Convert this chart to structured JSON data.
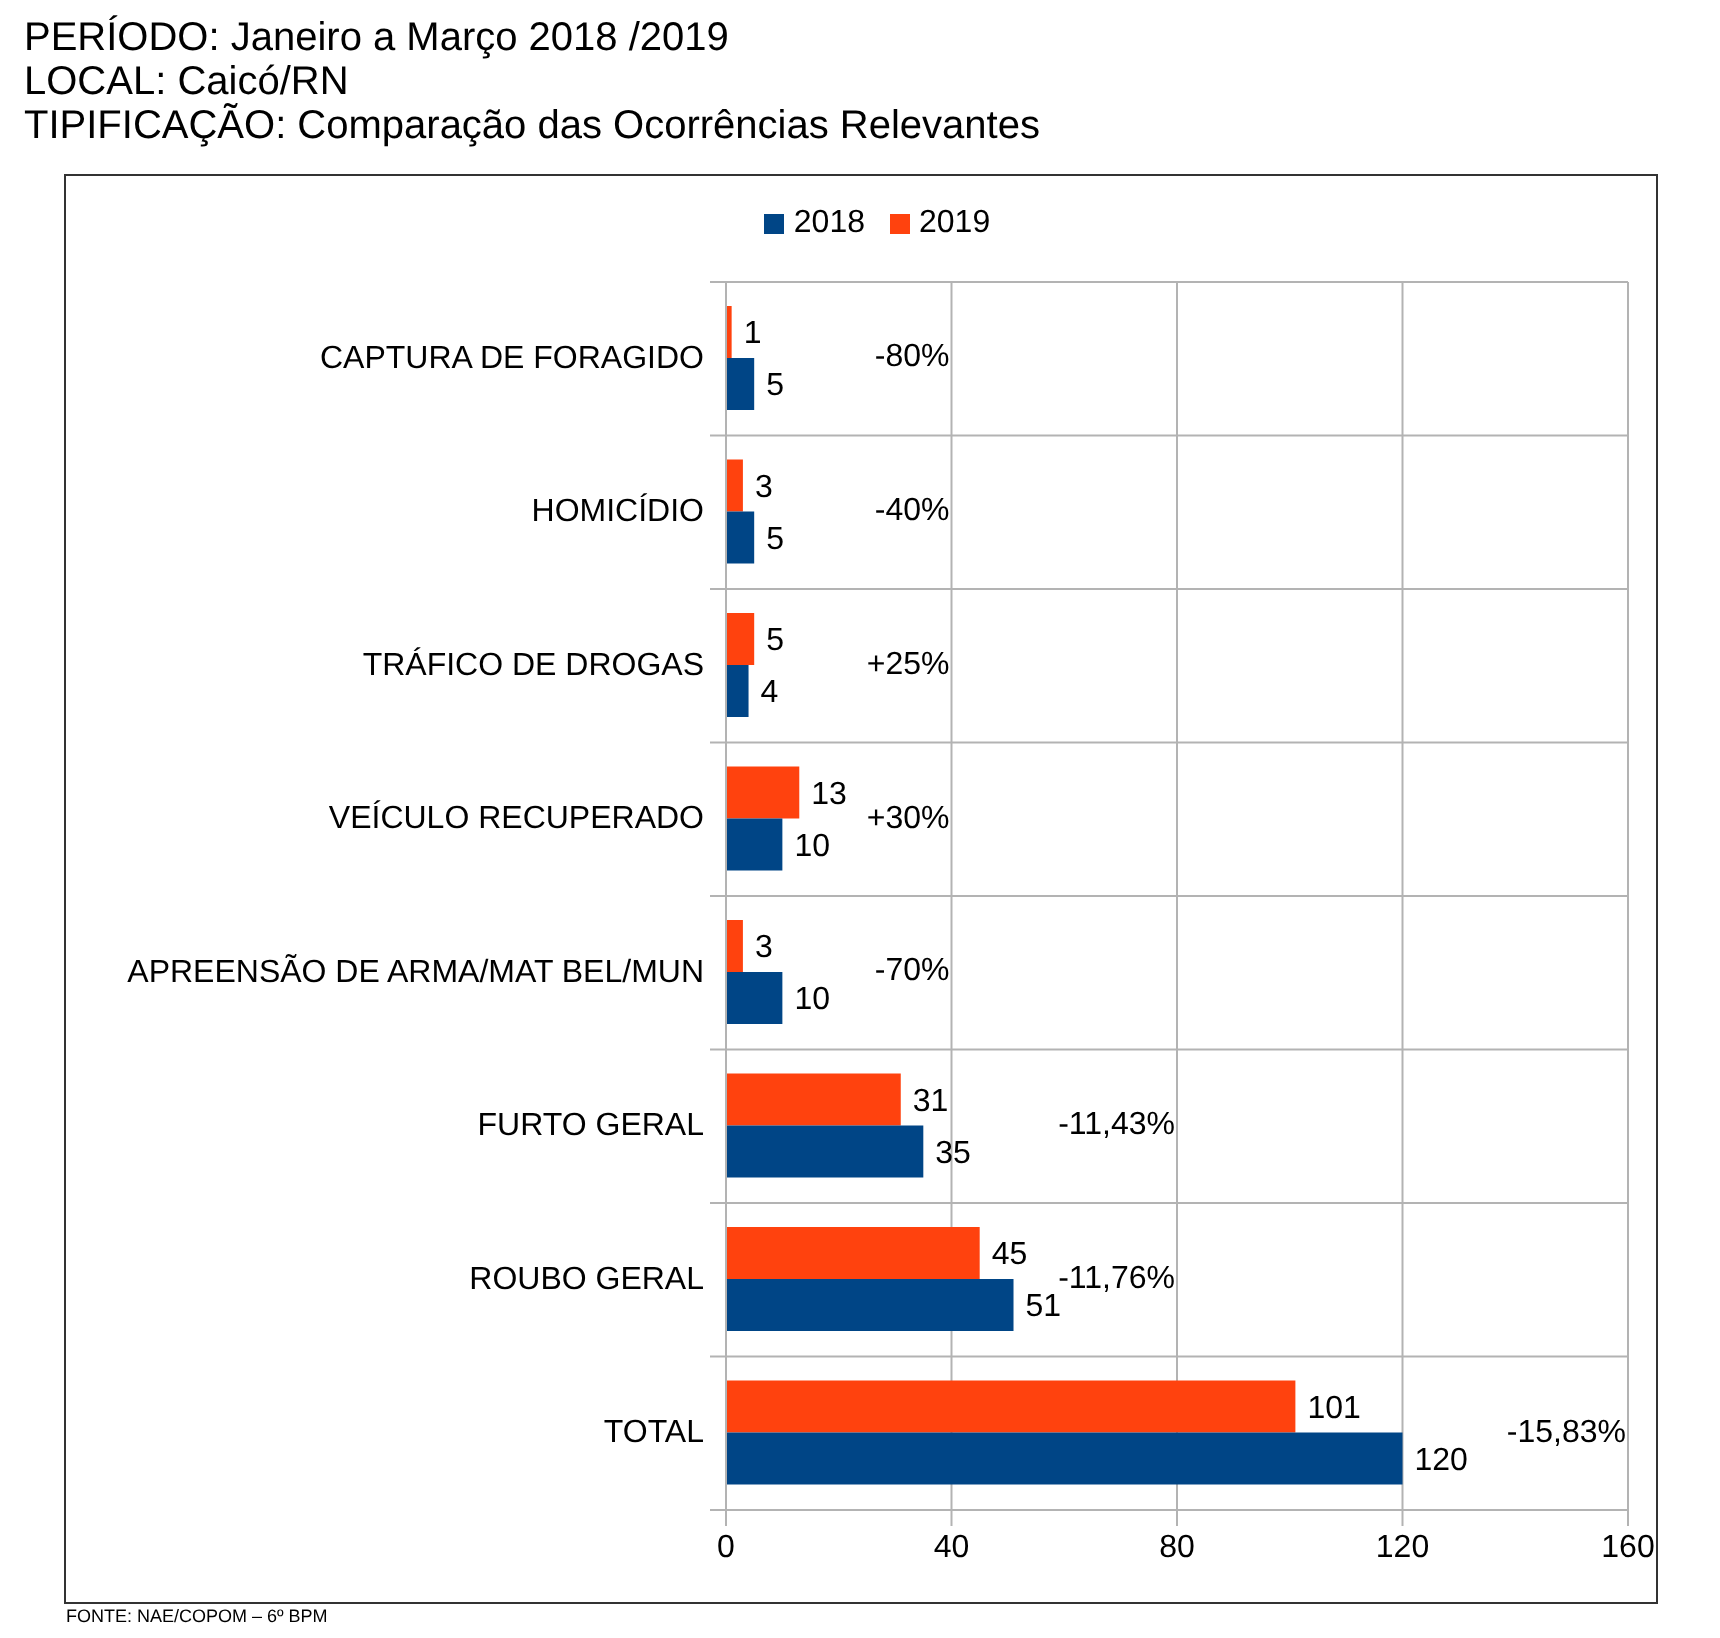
{
  "chart_data": {
    "type": "bar",
    "orientation": "horizontal",
    "title": "PERÍODO: Janeiro a Março 2018 /2019",
    "subtitle": "LOCAL: Caicó/RN\nTIPIFICAÇÃO: Comparação das Ocorrências Relevantes",
    "categories": [
      "CAPTURA DE FORAGIDO",
      "HOMICÍDIO",
      "TRÁFICO DE DROGAS",
      "VEÍCULO RECUPERADO",
      "APREENSÃO DE ARMA/MAT BEL/MUN",
      "FURTO GERAL",
      "ROUBO GERAL",
      "TOTAL"
    ],
    "series": [
      {
        "name": "2018",
        "color": "#004586",
        "values": [
          5,
          5,
          4,
          10,
          10,
          35,
          51,
          120
        ]
      },
      {
        "name": "2019",
        "color": "#ff420e",
        "values": [
          1,
          3,
          5,
          13,
          3,
          31,
          45,
          101
        ]
      }
    ],
    "xlim": [
      0,
      160
    ],
    "xticks": [
      0,
      40,
      80,
      120,
      160
    ],
    "grid": true,
    "legend": "top",
    "data_labels": true,
    "annotations": [
      "-80%",
      "-40%",
      "+25%",
      "+30%",
      "-70%",
      "-11,43%",
      "-11,76%",
      "-15,83%",
      "FONTE: NAE/COPOM – 6º BPM"
    ]
  }
}
